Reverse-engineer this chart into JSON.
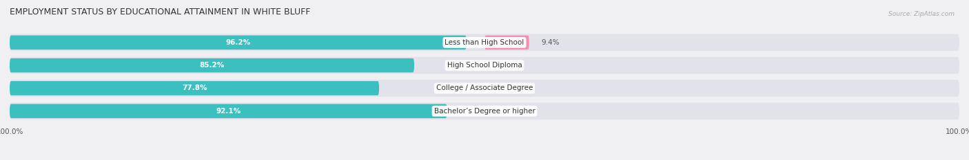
{
  "title": "EMPLOYMENT STATUS BY EDUCATIONAL ATTAINMENT IN WHITE BLUFF",
  "source": "Source: ZipAtlas.com",
  "categories": [
    "Less than High School",
    "High School Diploma",
    "College / Associate Degree",
    "Bachelor’s Degree or higher"
  ],
  "in_labor_force": [
    96.2,
    85.2,
    77.8,
    92.1
  ],
  "unemployed": [
    9.4,
    0.0,
    0.0,
    0.0
  ],
  "labor_force_color": "#3bbfbf",
  "unemployed_color": "#f48fb1",
  "background_color": "#f0f0f2",
  "bar_bg_color": "#e2e2ea",
  "row_bg_color": "#e8e8f0",
  "title_fontsize": 9,
  "label_fontsize": 7.5,
  "source_fontsize": 6.5,
  "tick_fontsize": 7.5,
  "bar_height": 0.62,
  "xlim_left": -100,
  "xlim_right": 100
}
